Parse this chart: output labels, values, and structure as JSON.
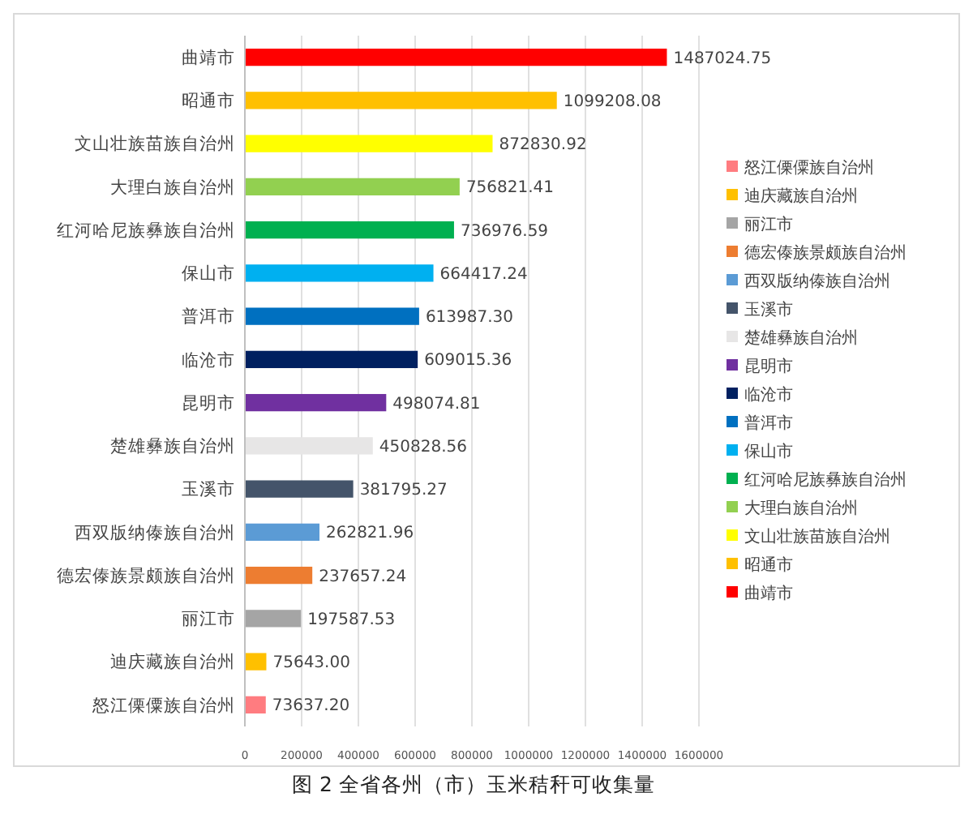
{
  "chart_data": {
    "type": "bar",
    "orientation": "horizontal",
    "title": "图 2 全省各州（市）玉米秸秆可收集量",
    "categories": [
      "曲靖市",
      "昭通市",
      "文山壮族苗族自治州",
      "大理白族自治州",
      "红河哈尼族彝族自治州",
      "保山市",
      "普洱市",
      "临沧市",
      "昆明市",
      "楚雄彝族自治州",
      "玉溪市",
      "西双版纳傣族自治州",
      "德宏傣族景颇族自治州",
      "丽江市",
      "迪庆藏族自治州",
      "怒江傈僳族自治州"
    ],
    "series": [
      {
        "name": "曲靖市",
        "color": "#ff0000",
        "values": [
          1487024.75,
          null,
          null,
          null,
          null,
          null,
          null,
          null,
          null,
          null,
          null,
          null,
          null,
          null,
          null,
          null
        ],
        "value_labels": [
          "1487024.75",
          null,
          null,
          null,
          null,
          null,
          null,
          null,
          null,
          null,
          null,
          null,
          null,
          null,
          null,
          null
        ]
      },
      {
        "name": "昭通市",
        "color": "#ffc000",
        "values": [
          null,
          1099208.08,
          null,
          null,
          null,
          null,
          null,
          null,
          null,
          null,
          null,
          null,
          null,
          null,
          null,
          null
        ],
        "value_labels": [
          null,
          "1099208.08",
          null,
          null,
          null,
          null,
          null,
          null,
          null,
          null,
          null,
          null,
          null,
          null,
          null,
          null
        ]
      },
      {
        "name": "文山壮族苗族自治州",
        "color": "#ffff00",
        "values": [
          null,
          null,
          872830.92,
          null,
          null,
          null,
          null,
          null,
          null,
          null,
          null,
          null,
          null,
          null,
          null,
          null
        ],
        "value_labels": [
          null,
          null,
          "872830.92",
          null,
          null,
          null,
          null,
          null,
          null,
          null,
          null,
          null,
          null,
          null,
          null,
          null
        ]
      },
      {
        "name": "大理白族自治州",
        "color": "#92d050",
        "values": [
          null,
          null,
          null,
          756821.41,
          null,
          null,
          null,
          null,
          null,
          null,
          null,
          null,
          null,
          null,
          null,
          null
        ],
        "value_labels": [
          null,
          null,
          null,
          "756821.41",
          null,
          null,
          null,
          null,
          null,
          null,
          null,
          null,
          null,
          null,
          null,
          null
        ]
      },
      {
        "name": "红河哈尼族彝族自治州",
        "color": "#00b050",
        "values": [
          null,
          null,
          null,
          null,
          736976.59,
          null,
          null,
          null,
          null,
          null,
          null,
          null,
          null,
          null,
          null,
          null
        ],
        "value_labels": [
          null,
          null,
          null,
          null,
          "736976.59",
          null,
          null,
          null,
          null,
          null,
          null,
          null,
          null,
          null,
          null,
          null
        ]
      },
      {
        "name": "保山市",
        "color": "#00b0f0",
        "values": [
          null,
          null,
          null,
          null,
          null,
          664417.24,
          null,
          null,
          null,
          null,
          null,
          null,
          null,
          null,
          null,
          null
        ],
        "value_labels": [
          null,
          null,
          null,
          null,
          null,
          "664417.24",
          null,
          null,
          null,
          null,
          null,
          null,
          null,
          null,
          null,
          null
        ]
      },
      {
        "name": "普洱市",
        "color": "#0070c0",
        "values": [
          null,
          null,
          null,
          null,
          null,
          null,
          613987.3,
          null,
          null,
          null,
          null,
          null,
          null,
          null,
          null,
          null
        ],
        "value_labels": [
          null,
          null,
          null,
          null,
          null,
          null,
          "613987.30",
          null,
          null,
          null,
          null,
          null,
          null,
          null,
          null,
          null
        ]
      },
      {
        "name": "临沧市",
        "color": "#002060",
        "values": [
          null,
          null,
          null,
          null,
          null,
          null,
          null,
          609015.36,
          null,
          null,
          null,
          null,
          null,
          null,
          null,
          null
        ],
        "value_labels": [
          null,
          null,
          null,
          null,
          null,
          null,
          null,
          "609015.36",
          null,
          null,
          null,
          null,
          null,
          null,
          null,
          null
        ]
      },
      {
        "name": "昆明市",
        "color": "#7030a0",
        "values": [
          null,
          null,
          null,
          null,
          null,
          null,
          null,
          null,
          498074.81,
          null,
          null,
          null,
          null,
          null,
          null,
          null
        ],
        "value_labels": [
          null,
          null,
          null,
          null,
          null,
          null,
          null,
          null,
          "498074.81",
          null,
          null,
          null,
          null,
          null,
          null,
          null
        ]
      },
      {
        "name": "楚雄彝族自治州",
        "color": "#e7e6e6",
        "values": [
          null,
          null,
          null,
          null,
          null,
          null,
          null,
          null,
          null,
          450828.56,
          null,
          null,
          null,
          null,
          null,
          null
        ],
        "value_labels": [
          null,
          null,
          null,
          null,
          null,
          null,
          null,
          null,
          null,
          "450828.56",
          null,
          null,
          null,
          null,
          null,
          null
        ]
      },
      {
        "name": "玉溪市",
        "color": "#44546a",
        "values": [
          null,
          null,
          null,
          null,
          null,
          null,
          null,
          null,
          null,
          null,
          381795.27,
          null,
          null,
          null,
          null,
          null
        ],
        "value_labels": [
          null,
          null,
          null,
          null,
          null,
          null,
          null,
          null,
          null,
          null,
          "381795.27",
          null,
          null,
          null,
          null,
          null
        ]
      },
      {
        "name": "西双版纳傣族自治州",
        "color": "#5b9bd5",
        "values": [
          null,
          null,
          null,
          null,
          null,
          null,
          null,
          null,
          null,
          null,
          null,
          262821.96,
          null,
          null,
          null,
          null
        ],
        "value_labels": [
          null,
          null,
          null,
          null,
          null,
          null,
          null,
          null,
          null,
          null,
          null,
          "262821.96",
          null,
          null,
          null,
          null
        ]
      },
      {
        "name": "德宏傣族景颇族自治州",
        "color": "#ed7d31",
        "values": [
          null,
          null,
          null,
          null,
          null,
          null,
          null,
          null,
          null,
          null,
          null,
          null,
          237657.24,
          null,
          null,
          null
        ],
        "value_labels": [
          null,
          null,
          null,
          null,
          null,
          null,
          null,
          null,
          null,
          null,
          null,
          null,
          "237657.24",
          null,
          null,
          null
        ]
      },
      {
        "name": "丽江市",
        "color": "#a5a5a5",
        "values": [
          null,
          null,
          null,
          null,
          null,
          null,
          null,
          null,
          null,
          null,
          null,
          null,
          null,
          197587.53,
          null,
          null
        ],
        "value_labels": [
          null,
          null,
          null,
          null,
          null,
          null,
          null,
          null,
          null,
          null,
          null,
          null,
          null,
          "197587.53",
          null,
          null
        ]
      },
      {
        "name": "迪庆藏族自治州",
        "color": "#ffc000",
        "values": [
          null,
          null,
          null,
          null,
          null,
          null,
          null,
          null,
          null,
          null,
          null,
          null,
          null,
          null,
          75643.0,
          null
        ],
        "value_labels": [
          null,
          null,
          null,
          null,
          null,
          null,
          null,
          null,
          null,
          null,
          null,
          null,
          null,
          null,
          "75643.00",
          null
        ]
      },
      {
        "name": "怒江傈僳族自治州",
        "color": "#ff7c80",
        "values": [
          null,
          null,
          null,
          null,
          null,
          null,
          null,
          null,
          null,
          null,
          null,
          null,
          null,
          null,
          null,
          73637.2
        ],
        "value_labels": [
          null,
          null,
          null,
          null,
          null,
          null,
          null,
          null,
          null,
          null,
          null,
          null,
          null,
          null,
          null,
          "73637.20"
        ]
      }
    ],
    "xlim": [
      0,
      1600000
    ],
    "xticks": [
      0,
      200000,
      400000,
      600000,
      800000,
      1000000,
      1200000,
      1400000,
      1600000
    ],
    "grid": "x",
    "legend": "right"
  }
}
